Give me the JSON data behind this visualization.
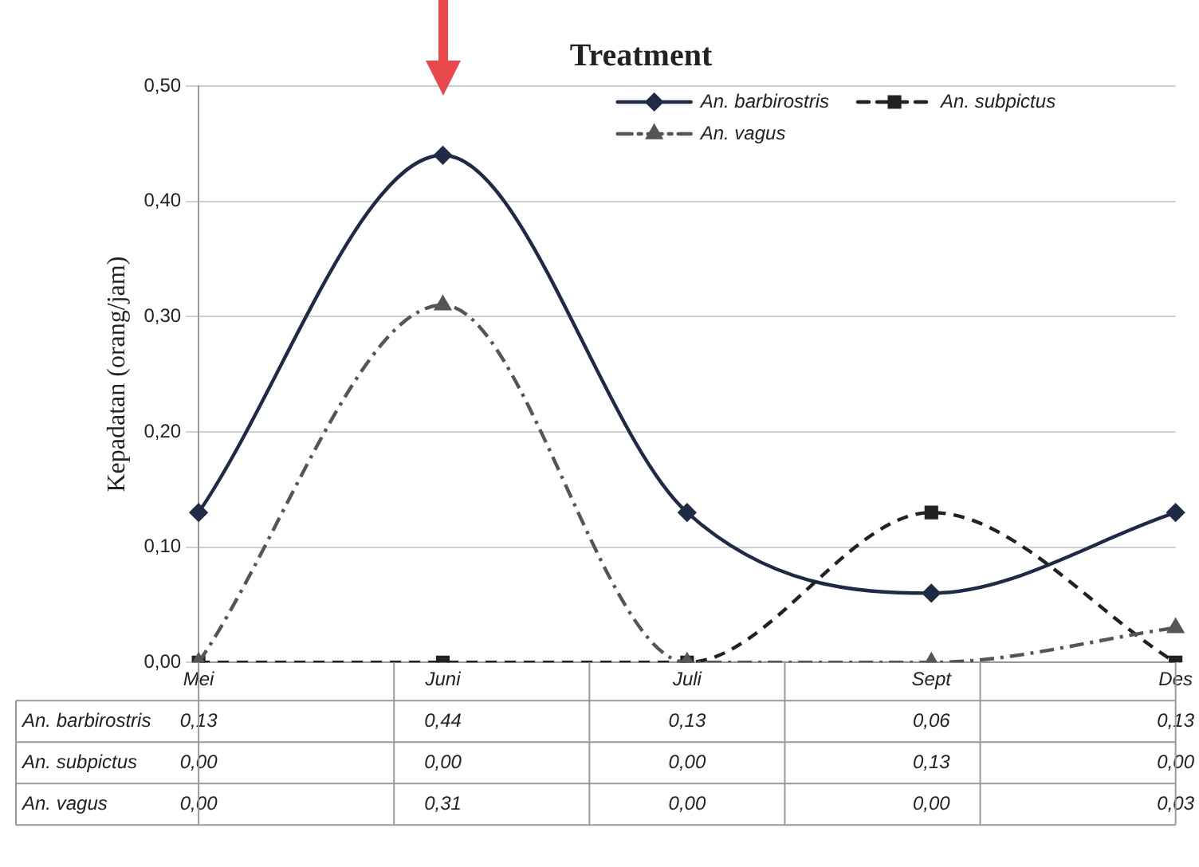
{
  "chart_data": {
    "type": "line",
    "title": "Treatment",
    "ylabel": "Kepadatan (orang/jam)",
    "categories": [
      "Mei",
      "Juni",
      "Juli",
      "Sept",
      "Des"
    ],
    "series": [
      {
        "name": "An. barbirostris",
        "color": "#1f2a44",
        "marker": "diamond",
        "line_style": "solid",
        "values": [
          0.13,
          0.44,
          0.13,
          0.06,
          0.13
        ],
        "value_labels": [
          "0,13",
          "0,44",
          "0,13",
          "0,06",
          "0,13"
        ]
      },
      {
        "name": "An. subpictus",
        "color": "#222222",
        "marker": "square",
        "line_style": "dashed",
        "values": [
          0.0,
          0.0,
          0.0,
          0.13,
          0.0
        ],
        "value_labels": [
          "0,00",
          "0,00",
          "0,00",
          "0,13",
          "0,00"
        ]
      },
      {
        "name": "An. vagus",
        "color": "#555555",
        "marker": "triangle",
        "line_style": "dashdot",
        "values": [
          0.0,
          0.31,
          0.0,
          0.0,
          0.03
        ],
        "value_labels": [
          "0,00",
          "0,31",
          "0,00",
          "0,00",
          "0,03"
        ]
      }
    ],
    "ylim": [
      0,
      0.5
    ],
    "yticks": [
      {
        "value": 0,
        "label": "0,00"
      },
      {
        "value": 0.1,
        "label": "0,10"
      },
      {
        "value": 0.2,
        "label": "0,20"
      },
      {
        "value": 0.3,
        "label": "0,30"
      },
      {
        "value": 0.4,
        "label": "0,40"
      },
      {
        "value": 0.5,
        "label": "0,50"
      }
    ],
    "grid": "y",
    "legend": "top right",
    "data_labels": true
  }
}
